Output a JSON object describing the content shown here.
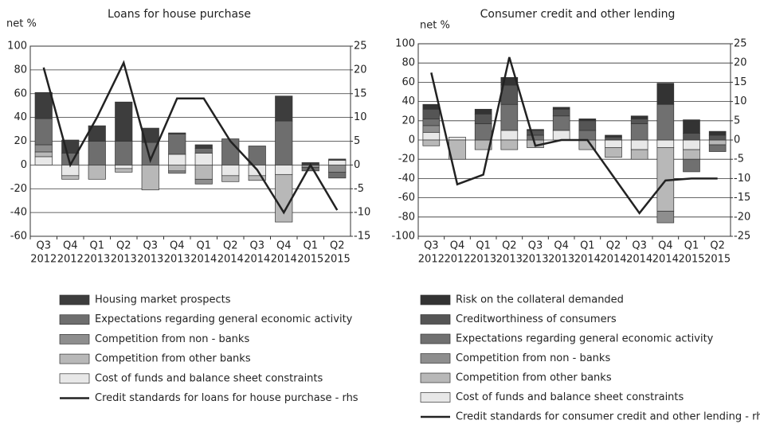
{
  "chart_data": [
    {
      "type": "bar",
      "stacked": true,
      "title": "Loans for house purchase",
      "ylabel": "net %",
      "categories": [
        [
          "Q3",
          "2012"
        ],
        [
          "Q4",
          "2012"
        ],
        [
          "Q1",
          "2013"
        ],
        [
          "Q2",
          "2013"
        ],
        [
          "Q3",
          "2013"
        ],
        [
          "Q4",
          "2013"
        ],
        [
          "Q1",
          "2014"
        ],
        [
          "Q2",
          "2014"
        ],
        [
          "Q3",
          "2014"
        ],
        [
          "Q4",
          "2014"
        ],
        [
          "Q1",
          "2015"
        ],
        [
          "Q2",
          "2015"
        ]
      ],
      "ylim": [
        -60,
        100
      ],
      "yticks": [
        -60,
        -40,
        -20,
        0,
        20,
        40,
        60,
        80,
        100
      ],
      "y2lim": [
        -15,
        25
      ],
      "y2ticks": [
        -15,
        -10,
        -5,
        0,
        5,
        10,
        15,
        20,
        25
      ],
      "grid": true,
      "series": [
        {
          "name": "Housing market prospects",
          "color": "#3d3d3d",
          "values": [
            22,
            11,
            13,
            33,
            12,
            1,
            3,
            0,
            0,
            21,
            2,
            1
          ]
        },
        {
          "name": "Expectations regarding general economic activity",
          "color": "#6e6e6e",
          "values": [
            22,
            10,
            20,
            20,
            19,
            17,
            4,
            22,
            16,
            37,
            -3,
            -5
          ]
        },
        {
          "name": "Competition from non - banks",
          "color": "#8e8e8e",
          "values": [
            6,
            0,
            0,
            0,
            0,
            -2,
            -4,
            0,
            0,
            0,
            -2,
            -6
          ]
        },
        {
          "name": "Competition from other banks",
          "color": "#b8b8b8",
          "values": [
            4,
            -3,
            -12,
            -3,
            -21,
            -5,
            -12,
            -5,
            -4,
            -40,
            0,
            0
          ]
        },
        {
          "name": "Cost of funds and balance sheet constraints",
          "color": "#e8e8e8",
          "values": [
            7,
            -9,
            0,
            -3,
            0,
            9,
            10,
            -9,
            -9,
            -8,
            0,
            4
          ]
        },
        {
          "name": "Credit standards for loans for house purchase - rhs",
          "type": "line",
          "axis": "y2",
          "color": "#222222",
          "values": [
            20.5,
            0,
            10,
            21.5,
            1,
            14,
            14,
            5,
            -1,
            -10,
            0,
            -9.5
          ]
        }
      ]
    },
    {
      "type": "bar",
      "stacked": true,
      "title": "Consumer credit and other lending",
      "ylabel": "net %",
      "categories": [
        [
          "Q3",
          "2012"
        ],
        [
          "Q4",
          "2012"
        ],
        [
          "Q1",
          "2013"
        ],
        [
          "Q2",
          "2013"
        ],
        [
          "Q3",
          "2013"
        ],
        [
          "Q4",
          "2013"
        ],
        [
          "Q1",
          "2014"
        ],
        [
          "Q2",
          "2014"
        ],
        [
          "Q3",
          "2014"
        ],
        [
          "Q4",
          "2014"
        ],
        [
          "Q1",
          "2015"
        ],
        [
          "Q2",
          "2015"
        ]
      ],
      "ylim": [
        -100,
        100
      ],
      "yticks": [
        -100,
        -80,
        -60,
        -40,
        -20,
        0,
        20,
        40,
        60,
        80,
        100
      ],
      "y2lim": [
        -25,
        25
      ],
      "y2ticks": [
        -25,
        -20,
        -15,
        -10,
        -5,
        0,
        5,
        10,
        15,
        20,
        25
      ],
      "grid": true,
      "series": [
        {
          "name": "Risk on the collateral demanded",
          "color": "#333333",
          "values": [
            5,
            0,
            5,
            8,
            1,
            2,
            2,
            2,
            3,
            22,
            14,
            4
          ]
        },
        {
          "name": "Creditworthiness of consumers",
          "color": "#555555",
          "values": [
            10,
            0,
            10,
            20,
            5,
            7,
            10,
            3,
            5,
            0,
            7,
            5
          ]
        },
        {
          "name": "Expectations regarding general economic activity",
          "color": "#707070",
          "values": [
            7,
            0,
            17,
            27,
            5,
            15,
            10,
            0,
            17,
            37,
            -13,
            -7
          ]
        },
        {
          "name": "Competition from non - banks",
          "color": "#8e8e8e",
          "values": [
            7,
            0,
            0,
            0,
            0,
            0,
            0,
            0,
            0,
            -12,
            0,
            0
          ]
        },
        {
          "name": "Competition from other banks",
          "color": "#b8b8b8",
          "values": [
            -6,
            -20,
            -10,
            -10,
            -8,
            0,
            -10,
            -10,
            -10,
            -66,
            -10,
            -5
          ]
        },
        {
          "name": "Cost of funds and balance sheet constraints",
          "color": "#e8e8e8",
          "values": [
            8,
            3,
            0,
            10,
            0,
            10,
            0,
            -8,
            -10,
            -8,
            -10,
            0
          ]
        },
        {
          "name": "Credit standards for consumer credit and other lending - rhs",
          "type": "line",
          "axis": "y2",
          "color": "#222222",
          "values": [
            17.5,
            -11.5,
            -9,
            21.5,
            -1.5,
            0,
            0,
            -9.5,
            -19,
            -10.5,
            -10,
            -10
          ]
        }
      ]
    }
  ]
}
